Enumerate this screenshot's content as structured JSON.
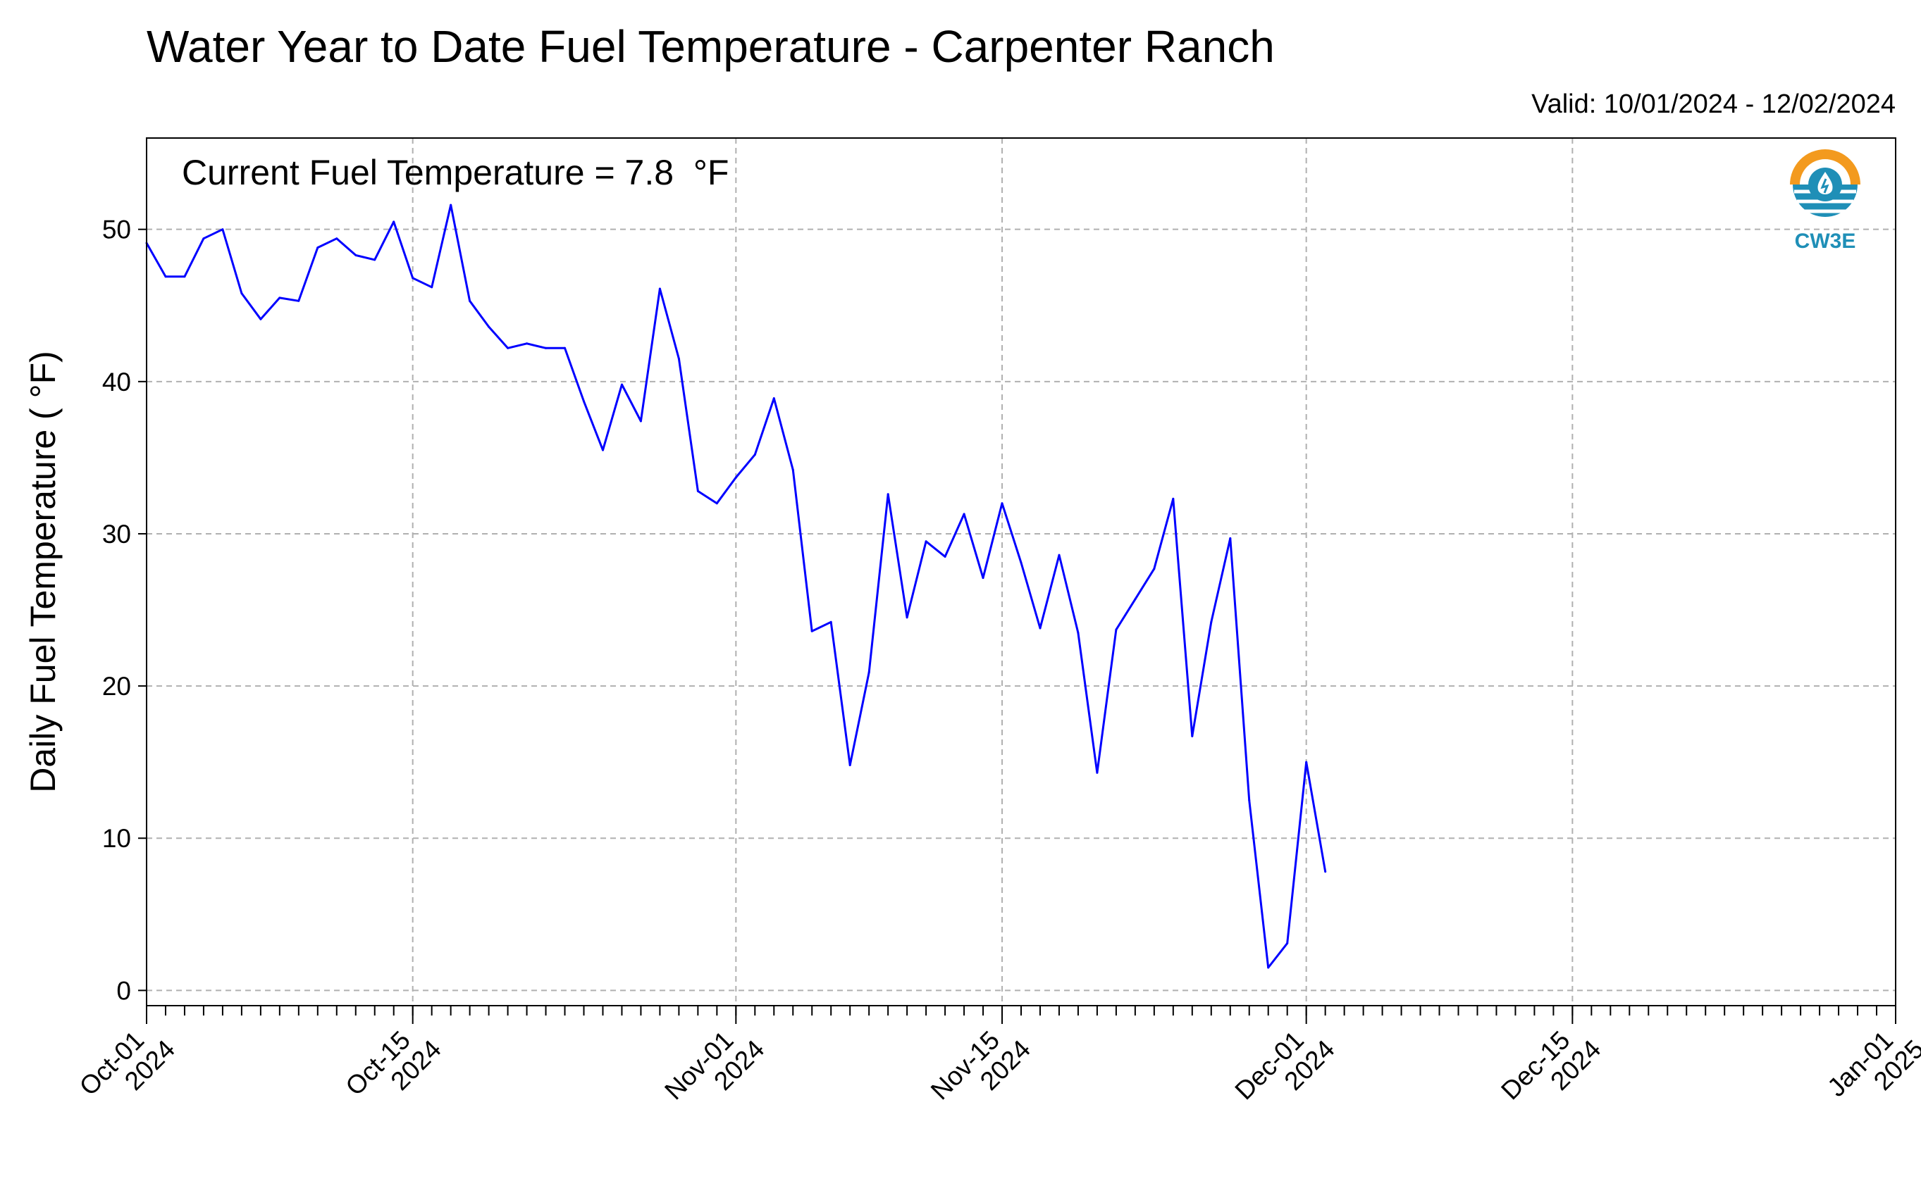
{
  "chart_data": {
    "type": "line",
    "title": "Water Year to Date Fuel Temperature - Carpenter Ranch",
    "subtitle": "Valid: 10/01/2024 - 12/02/2024",
    "annotation": "Current Fuel Temperature = 7.8  °F",
    "xlabel": "",
    "ylabel": "Daily Fuel Temperature ( °F)",
    "xlim": [
      "2024-10-01",
      "2025-01-01"
    ],
    "ylim": [
      -1,
      56
    ],
    "grid": true,
    "x_ticks": [
      {
        "date": "2024-10-01",
        "line1": "Oct-01",
        "line2": "2024"
      },
      {
        "date": "2024-10-15",
        "line1": "Oct-15",
        "line2": "2024"
      },
      {
        "date": "2024-11-01",
        "line1": "Nov-01",
        "line2": "2024"
      },
      {
        "date": "2024-11-15",
        "line1": "Nov-15",
        "line2": "2024"
      },
      {
        "date": "2024-12-01",
        "line1": "Dec-01",
        "line2": "2024"
      },
      {
        "date": "2024-12-15",
        "line1": "Dec-15",
        "line2": "2024"
      },
      {
        "date": "2025-01-01",
        "line1": "Jan-01",
        "line2": "2025"
      }
    ],
    "y_ticks": [
      0,
      10,
      20,
      30,
      40,
      50
    ],
    "series": [
      {
        "color": "#0000ff",
        "x": [
          "2024-10-01",
          "2024-10-02",
          "2024-10-03",
          "2024-10-04",
          "2024-10-05",
          "2024-10-06",
          "2024-10-07",
          "2024-10-08",
          "2024-10-09",
          "2024-10-10",
          "2024-10-11",
          "2024-10-12",
          "2024-10-13",
          "2024-10-14",
          "2024-10-15",
          "2024-10-16",
          "2024-10-17",
          "2024-10-18",
          "2024-10-19",
          "2024-10-20",
          "2024-10-21",
          "2024-10-22",
          "2024-10-23",
          "2024-10-24",
          "2024-10-25",
          "2024-10-26",
          "2024-10-27",
          "2024-10-28",
          "2024-10-29",
          "2024-10-30",
          "2024-10-31",
          "2024-11-01",
          "2024-11-02",
          "2024-11-03",
          "2024-11-04",
          "2024-11-05",
          "2024-11-06",
          "2024-11-07",
          "2024-11-08",
          "2024-11-09",
          "2024-11-10",
          "2024-11-11",
          "2024-11-12",
          "2024-11-13",
          "2024-11-14",
          "2024-11-15",
          "2024-11-16",
          "2024-11-17",
          "2024-11-18",
          "2024-11-19",
          "2024-11-20",
          "2024-11-21",
          "2024-11-22",
          "2024-11-23",
          "2024-11-24",
          "2024-11-25",
          "2024-11-26",
          "2024-11-27",
          "2024-11-28",
          "2024-11-29",
          "2024-11-30",
          "2024-12-01",
          "2024-12-02"
        ],
        "values": [
          49.1,
          46.9,
          46.9,
          49.4,
          50.0,
          45.8,
          44.1,
          45.5,
          45.3,
          48.8,
          49.4,
          48.3,
          48.0,
          50.5,
          46.8,
          46.2,
          51.6,
          45.3,
          43.6,
          42.2,
          42.5,
          42.2,
          42.2,
          38.7,
          35.5,
          39.8,
          37.4,
          46.1,
          41.5,
          32.8,
          32.0,
          33.7,
          35.2,
          38.9,
          34.2,
          23.6,
          24.2,
          14.8,
          20.9,
          32.6,
          24.5,
          29.5,
          28.5,
          31.3,
          27.1,
          32.0,
          28.1,
          23.8,
          28.6,
          23.5,
          14.3,
          23.7,
          25.7,
          27.7,
          32.3,
          16.7,
          24.2,
          29.7,
          12.5,
          1.5,
          3.1,
          15.0,
          7.8
        ]
      }
    ]
  },
  "logo": {
    "text": "CW3E",
    "colors": {
      "sun": "#f39a1e",
      "water": "#1f8fb7"
    },
    "icon": "water-drop-icon"
  },
  "colors": {
    "line": "#0000ff",
    "grid": "#b0b0b0",
    "axis": "#000000"
  }
}
